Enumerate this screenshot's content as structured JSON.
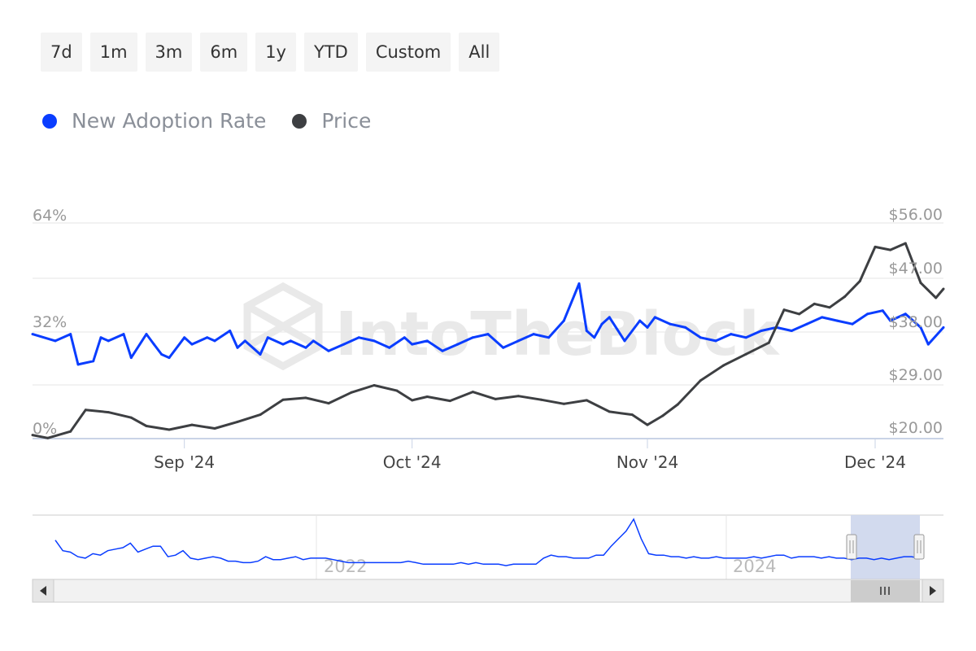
{
  "range_buttons": [
    "7d",
    "1m",
    "3m",
    "6m",
    "1y",
    "YTD",
    "Custom",
    "All"
  ],
  "watermark": "IntoTheBlock",
  "colors": {
    "adoption": "#0a3dff",
    "price": "#3d3f42",
    "grid": "#e6e6e6",
    "navigator_mask": "#cdd6ec"
  },
  "legend": [
    {
      "name": "New Adoption Rate",
      "color": "#0a3dff"
    },
    {
      "name": "Price",
      "color": "#3d3f42"
    }
  ],
  "chart_data": {
    "type": "line",
    "title": "",
    "x_range": [
      "2024-08-12",
      "2024-12-10"
    ],
    "x_ticks": [
      {
        "date": "2024-09-01",
        "label": "Sep '24"
      },
      {
        "date": "2024-10-01",
        "label": "Oct '24"
      },
      {
        "date": "2024-11-01",
        "label": "Nov '24"
      },
      {
        "date": "2024-12-01",
        "label": "Dec '24"
      }
    ],
    "y_left": {
      "ticks": [
        "0%",
        "32%",
        "64%"
      ],
      "min": 0,
      "max": 64,
      "unit": "%"
    },
    "y_right": {
      "ticks": [
        "$20.00",
        "$29.00",
        "$38.00",
        "$47.00",
        "$56.00"
      ],
      "min": 20,
      "max": 56
    },
    "series": [
      {
        "name": "New Adoption Rate",
        "axis": "left",
        "x": [
          "2024-08-12",
          "2024-08-15",
          "2024-08-17",
          "2024-08-18",
          "2024-08-20",
          "2024-08-21",
          "2024-08-22",
          "2024-08-24",
          "2024-08-25",
          "2024-08-27",
          "2024-08-28",
          "2024-08-29",
          "2024-08-30",
          "2024-09-01",
          "2024-09-02",
          "2024-09-04",
          "2024-09-05",
          "2024-09-07",
          "2024-09-08",
          "2024-09-09",
          "2024-09-11",
          "2024-09-12",
          "2024-09-14",
          "2024-09-15",
          "2024-09-17",
          "2024-09-18",
          "2024-09-20",
          "2024-09-22",
          "2024-09-24",
          "2024-09-26",
          "2024-09-28",
          "2024-09-30",
          "2024-10-01",
          "2024-10-03",
          "2024-10-05",
          "2024-10-07",
          "2024-10-09",
          "2024-10-11",
          "2024-10-13",
          "2024-10-15",
          "2024-10-17",
          "2024-10-19",
          "2024-10-21",
          "2024-10-23",
          "2024-10-24",
          "2024-10-25",
          "2024-10-26",
          "2024-10-27",
          "2024-10-29",
          "2024-10-31",
          "2024-11-01",
          "2024-11-02",
          "2024-11-04",
          "2024-11-06",
          "2024-11-08",
          "2024-11-10",
          "2024-11-12",
          "2024-11-14",
          "2024-11-16",
          "2024-11-18",
          "2024-11-20",
          "2024-11-22",
          "2024-11-24",
          "2024-11-26",
          "2024-11-28",
          "2024-11-30",
          "2024-12-02",
          "2024-12-03",
          "2024-12-05",
          "2024-12-07",
          "2024-12-08",
          "2024-12-10"
        ],
        "y": [
          31,
          29,
          31,
          22,
          23,
          30,
          29,
          31,
          24,
          31,
          28,
          25,
          24,
          30,
          28,
          30,
          29,
          32,
          27,
          29,
          25,
          30,
          28,
          29,
          27,
          29,
          26,
          28,
          30,
          29,
          27,
          30,
          28,
          29,
          26,
          28,
          30,
          31,
          27,
          29,
          31,
          30,
          35,
          46,
          32,
          30,
          34,
          36,
          29,
          35,
          33,
          36,
          34,
          33,
          30,
          29,
          31,
          30,
          32,
          33,
          32,
          34,
          36,
          35,
          34,
          37,
          38,
          35,
          37,
          33,
          28,
          33
        ],
        "labels_shown": [
          "0%",
          "32%",
          "64%"
        ]
      },
      {
        "name": "Price",
        "axis": "right",
        "x": [
          "2024-08-12",
          "2024-08-14",
          "2024-08-17",
          "2024-08-19",
          "2024-08-22",
          "2024-08-25",
          "2024-08-27",
          "2024-08-30",
          "2024-09-02",
          "2024-09-05",
          "2024-09-08",
          "2024-09-11",
          "2024-09-14",
          "2024-09-17",
          "2024-09-20",
          "2024-09-23",
          "2024-09-26",
          "2024-09-29",
          "2024-10-01",
          "2024-10-03",
          "2024-10-06",
          "2024-10-09",
          "2024-10-12",
          "2024-10-15",
          "2024-10-18",
          "2024-10-21",
          "2024-10-24",
          "2024-10-27",
          "2024-10-30",
          "2024-11-01",
          "2024-11-03",
          "2024-11-05",
          "2024-11-08",
          "2024-11-11",
          "2024-11-14",
          "2024-11-17",
          "2024-11-19",
          "2024-11-21",
          "2024-11-23",
          "2024-11-25",
          "2024-11-27",
          "2024-11-29",
          "2024-12-01",
          "2024-12-03",
          "2024-12-05",
          "2024-12-07",
          "2024-12-09",
          "2024-12-10"
        ],
        "y": [
          20.6,
          20.1,
          21.2,
          24.8,
          24.4,
          23.5,
          22.1,
          21.5,
          22.3,
          21.7,
          22.8,
          24.0,
          26.5,
          26.8,
          25.9,
          27.7,
          28.9,
          28.0,
          26.4,
          27.0,
          26.3,
          27.8,
          26.6,
          27.1,
          26.5,
          25.8,
          26.4,
          24.5,
          24.0,
          22.3,
          23.8,
          25.7,
          29.7,
          32.2,
          34.1,
          36.0,
          41.5,
          40.8,
          42.5,
          41.9,
          43.7,
          46.3,
          52.0,
          51.5,
          52.6,
          46.0,
          43.5,
          45.0
        ]
      }
    ]
  },
  "navigator": {
    "year_labels": [
      "2022",
      "2024"
    ],
    "scroll_left_icon": "arrow-left-icon",
    "scroll_right_icon": "arrow-right-icon",
    "thumb_grip_icon": "grip-icon",
    "points": [
      24,
      17,
      16,
      13,
      12,
      15,
      14,
      17,
      18,
      19,
      22,
      16,
      18,
      20,
      20,
      13,
      14,
      17,
      12,
      11,
      12,
      13,
      12,
      10,
      10,
      9,
      9,
      10,
      13,
      11,
      11,
      12,
      13,
      11,
      12,
      12,
      12,
      11,
      10,
      9,
      9,
      9,
      9,
      9,
      9,
      9,
      9,
      10,
      9,
      8,
      8,
      8,
      8,
      8,
      9,
      8,
      9,
      8,
      8,
      8,
      7,
      8,
      8,
      8,
      8,
      12,
      14,
      13,
      13,
      12,
      12,
      12,
      14,
      14,
      20,
      25,
      30,
      38,
      25,
      15,
      14,
      14,
      13,
      13,
      12,
      13,
      12,
      12,
      13,
      12,
      12,
      12,
      12,
      13,
      12,
      13,
      14,
      14,
      12,
      13,
      13,
      13,
      12,
      13,
      12,
      12,
      11,
      12,
      12,
      11,
      12,
      11,
      12,
      13,
      13,
      12
    ]
  }
}
